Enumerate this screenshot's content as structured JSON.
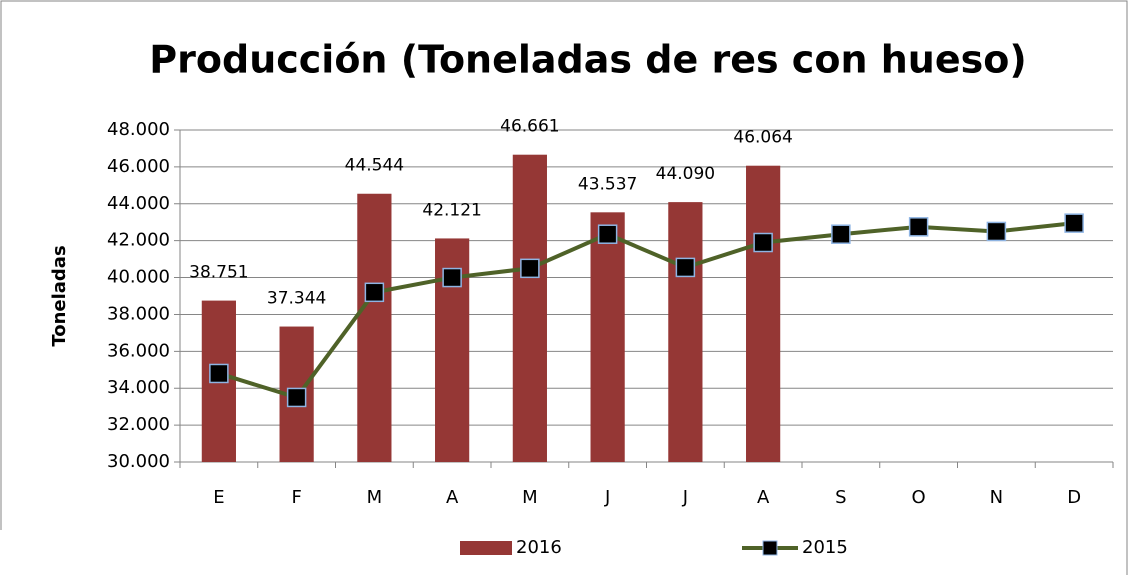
{
  "chart_data": {
    "type": "bar",
    "title": "Producción (Toneladas de res con hueso)",
    "y_label": "Toneladas",
    "categories": [
      "E",
      "F",
      "M",
      "A",
      "M",
      "J",
      "J",
      "A",
      "S",
      "O",
      "N",
      "D"
    ],
    "series": [
      {
        "name": "2016",
        "type": "bar",
        "color": "#953735",
        "values": [
          38751,
          37344,
          44544,
          42121,
          46661,
          43537,
          44090,
          46064,
          null,
          null,
          null,
          null
        ],
        "value_labels": [
          "38.751",
          "37.344",
          "44.544",
          "42.121",
          "46.661",
          "43.537",
          "44.090",
          "46.064",
          null,
          null,
          null,
          null
        ]
      },
      {
        "name": "2015",
        "type": "line",
        "color": "#4f6228",
        "marker_color": "#000000",
        "values": [
          34800,
          33500,
          39200,
          40000,
          40500,
          42350,
          40550,
          41900,
          42350,
          42750,
          42500,
          42950
        ]
      }
    ],
    "ylim": [
      30000,
      48000
    ],
    "yticks": [
      {
        "value": 30000,
        "label": "30.000"
      },
      {
        "value": 32000,
        "label": "32.000"
      },
      {
        "value": 34000,
        "label": "34.000"
      },
      {
        "value": 36000,
        "label": "36.000"
      },
      {
        "value": 38000,
        "label": "38.000"
      },
      {
        "value": 40000,
        "label": "40.000"
      },
      {
        "value": 42000,
        "label": "42.000"
      },
      {
        "value": 44000,
        "label": "44.000"
      },
      {
        "value": 46000,
        "label": "46.000"
      },
      {
        "value": 48000,
        "label": "48.000"
      }
    ],
    "grid": true,
    "legend": "bottom"
  }
}
